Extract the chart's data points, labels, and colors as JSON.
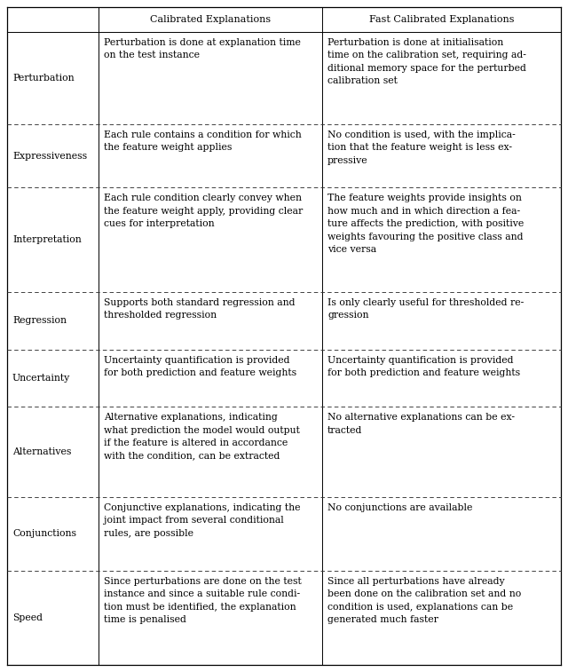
{
  "col_headers": [
    "",
    "Calibrated Explanations",
    "Fast Calibrated Explanations"
  ],
  "rows": [
    {
      "label": "Perturbation",
      "col1": "Perturbation is done at explanation time\non the test instance",
      "col2": "Perturbation is done at initialisation\ntime on the calibration set, requiring ad-\nditional memory space for the perturbed\ncalibration set"
    },
    {
      "label": "Expressiveness",
      "col1": "Each rule contains a condition for which\nthe feature weight applies",
      "col2": "No condition is used, with the implica-\ntion that the feature weight is less ex-\npressive"
    },
    {
      "label": "Interpretation",
      "col1": "Each rule condition clearly convey when\nthe feature weight apply, providing clear\ncues for interpretation",
      "col2": "The feature weights provide insights on\nhow much and in which direction a fea-\nture affects the prediction, with positive\nweights favouring the positive class and\nvice versa"
    },
    {
      "label": "Regression",
      "col1": "Supports both standard regression and\nthresholded regression",
      "col2": "Is only clearly useful for thresholded re-\ngression"
    },
    {
      "label": "Uncertainty",
      "col1": "Uncertainty quantification is provided\nfor both prediction and feature weights",
      "col2": "Uncertainty quantification is provided\nfor both prediction and feature weights"
    },
    {
      "label": "Alternatives",
      "col1": "Alternative explanations, indicating\nwhat prediction the model would output\nif the feature is altered in accordance\nwith the condition, can be extracted",
      "col2": "No alternative explanations can be ex-\ntracted"
    },
    {
      "label": "Conjunctions",
      "col1": "Conjunctive explanations, indicating the\njoint impact from several conditional\nrules, are possible",
      "col2": "No conjunctions are available"
    },
    {
      "label": "Speed",
      "col1": "Since perturbations are done on the test\ninstance and since a suitable rule condi-\ntion must be identified, the explanation\ntime is penalised",
      "col2": "Since all perturbations have already\nbeen done on the calibration set and no\ncondition is used, explanations can be\ngenerated much faster"
    }
  ],
  "font_size": 7.8,
  "label_font_size": 7.8,
  "header_font_size": 8.0,
  "background_color": "#ffffff",
  "text_color": "#000000"
}
